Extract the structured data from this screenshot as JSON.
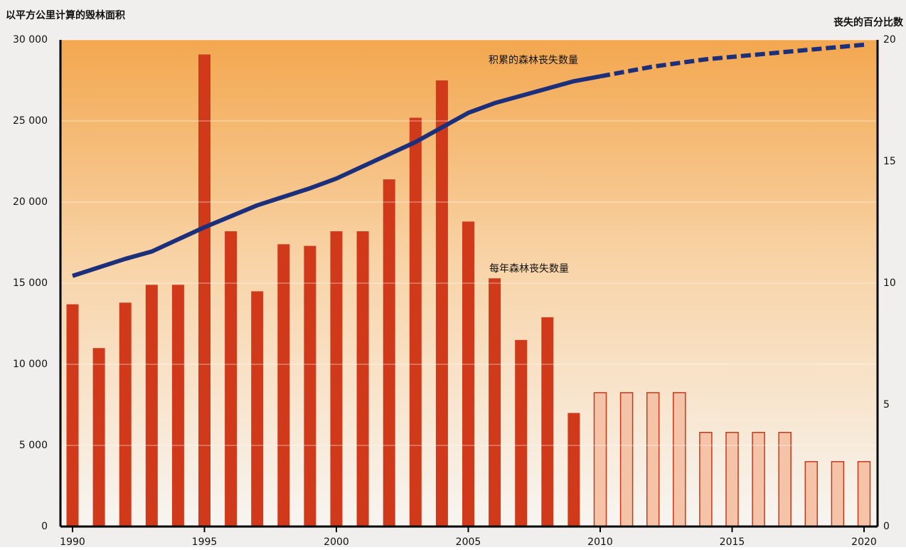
{
  "chart_data": {
    "type": "bar-line",
    "y_label": "以平方公里计算的毁林面积",
    "y2_label": "丧失的百分比数",
    "annotations": [
      "积累的森林丧失数量",
      "每年森林丧失数量"
    ],
    "categories": [
      1990,
      1991,
      1992,
      1993,
      1994,
      1995,
      1996,
      1997,
      1998,
      1999,
      2000,
      2001,
      2002,
      2003,
      2004,
      2005,
      2006,
      2007,
      2008,
      2009,
      2010,
      2011,
      2012,
      2013,
      2014,
      2015,
      2016,
      2017,
      2018,
      2019,
      2020
    ],
    "xlim": [
      1990,
      2020
    ],
    "xticks": [
      1990,
      1995,
      2000,
      2005,
      2010,
      2015,
      2020
    ],
    "ylim": [
      0,
      30000
    ],
    "yticks": [
      0,
      {
        "value": 5000,
        "label": "5 000"
      },
      {
        "value": 10000,
        "label": "10 000"
      },
      {
        "value": 15000,
        "label": "15 000"
      },
      {
        "value": 20000,
        "label": "20 000"
      },
      {
        "value": 25000,
        "label": "25 000"
      },
      {
        "value": 30000,
        "label": "30 000"
      }
    ],
    "y2lim": [
      0,
      20
    ],
    "y2ticks": [
      0,
      5,
      10,
      15,
      20
    ],
    "bar_series": [
      {
        "color": "#d03a1a",
        "values": [
          13700,
          11000,
          13800,
          14900,
          14900,
          29100,
          18200,
          14500,
          17400,
          17300,
          18200,
          18200,
          21400,
          25200,
          27500,
          18800,
          15300,
          11500,
          12900,
          7000,
          null,
          null,
          null,
          null,
          null,
          null,
          null,
          null,
          null,
          null,
          null
        ]
      },
      {
        "color": "#f4c3a8",
        "values": [
          null,
          null,
          null,
          null,
          null,
          null,
          null,
          null,
          null,
          null,
          null,
          null,
          null,
          null,
          null,
          null,
          null,
          null,
          null,
          null,
          8250,
          8250,
          8250,
          8250,
          5800,
          5800,
          5800,
          5800,
          4000,
          4000,
          4000
        ]
      }
    ],
    "line_series": [
      {
        "color": "#1c2f7a",
        "dashed": false,
        "axis": "y2",
        "x": [
          1990,
          1992,
          1993,
          1995,
          1997,
          1999,
          2000,
          2002,
          2003,
          2004,
          2005,
          2006,
          2007,
          2008,
          2009,
          2010
        ],
        "values": [
          10.3,
          11.0,
          11.3,
          12.3,
          13.2,
          13.9,
          14.3,
          15.3,
          15.8,
          16.4,
          17.0,
          17.4,
          17.7,
          18.0,
          18.3,
          18.5
        ]
      },
      {
        "color": "#1c2f7a",
        "dashed": true,
        "axis": "y2",
        "x": [
          2010,
          2012,
          2014,
          2016,
          2018,
          2020
        ],
        "values": [
          18.5,
          18.9,
          19.2,
          19.4,
          19.6,
          19.8
        ]
      }
    ]
  }
}
